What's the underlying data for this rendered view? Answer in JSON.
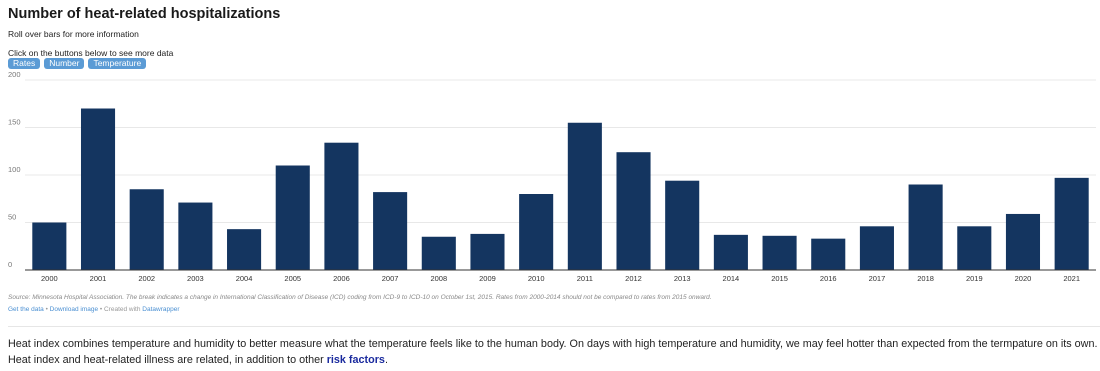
{
  "header": {
    "title": "Number of heat-related hospitalizations",
    "subtitle": "Roll over bars for more information",
    "instruction": "Click on the buttons below to see more data"
  },
  "buttons": [
    {
      "label": "Rates"
    },
    {
      "label": "Number"
    },
    {
      "label": "Temperature"
    }
  ],
  "colors": {
    "bar": "#143560",
    "button": "#5b9bd5",
    "link": "#4a8fd2",
    "risk_link": "#1a2a9e"
  },
  "chart_data": {
    "type": "bar",
    "title": "Number of heat-related hospitalizations",
    "xlabel": "",
    "ylabel": "",
    "categories": [
      "2000",
      "2001",
      "2002",
      "2003",
      "2004",
      "2005",
      "2006",
      "2007",
      "2008",
      "2009",
      "2010",
      "2011",
      "2012",
      "2013",
      "2014",
      "2015",
      "2016",
      "2017",
      "2018",
      "2019",
      "2020",
      "2021"
    ],
    "values": [
      50,
      170,
      85,
      71,
      43,
      110,
      134,
      82,
      35,
      38,
      80,
      155,
      124,
      94,
      37,
      36,
      33,
      46,
      90,
      46,
      59,
      97
    ],
    "ylim": [
      0,
      200
    ],
    "yticks": [
      "0",
      "50",
      "100",
      "150",
      "200"
    ],
    "grid": true
  },
  "footer": {
    "source": "Source: Minnesota Hospital Association. The break indicates a change in International Classification of Disease (ICD) coding from ICD-9 to ICD-10 on October 1st, 2015. Rates from 2000-2014 should not be compared to rates from 2015 onward.",
    "get_data": "Get the data",
    "sep1": " • ",
    "download": "Download image",
    "sep2": " • Created with ",
    "datawrapper": "Datawrapper"
  },
  "paragraph": {
    "text": "Heat index combines temperature and humidity to better measure what the temperature feels like to the human body. On days with high temperature and humidity, we may feel hotter than expected from the termpature on its own. Heat index and heat-related illness are related, in addition to other ",
    "link": "risk factors",
    "end": "."
  }
}
